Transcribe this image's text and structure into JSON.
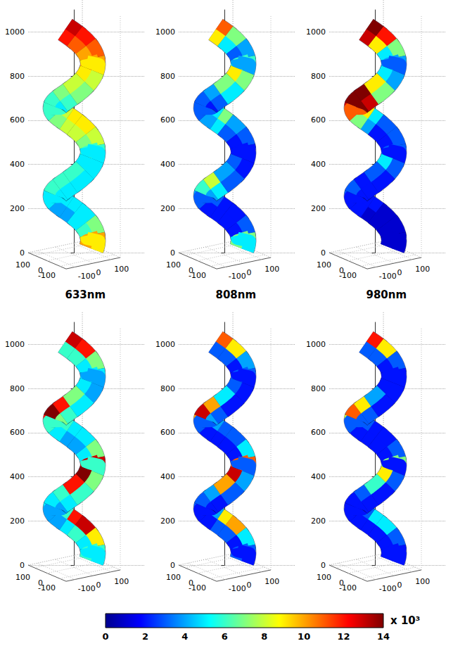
{
  "chart_data": [
    {
      "type": "helix",
      "label": "633nm",
      "grid": true,
      "zlim": [
        0,
        1100
      ],
      "zticks": [
        0,
        200,
        400,
        600,
        800,
        1000
      ],
      "xlim": [
        -150,
        150
      ],
      "xticks": [
        -100,
        0,
        100
      ],
      "ylim": [
        -150,
        150
      ],
      "yticks": [
        -100,
        0,
        100
      ],
      "upper_values": [
        10,
        7,
        5,
        5,
        5,
        5,
        6,
        6,
        6,
        5,
        6,
        8,
        9,
        9,
        8,
        6,
        6,
        7,
        8,
        9,
        10,
        11,
        12,
        13
      ],
      "lower_values": [
        9,
        6,
        5,
        4,
        4,
        5,
        5,
        5,
        5,
        5,
        5,
        7,
        8,
        8,
        7,
        6,
        5,
        6,
        7,
        8,
        9,
        10,
        11,
        12
      ]
    },
    {
      "type": "helix",
      "label": "808nm",
      "grid": true,
      "zlim": [
        0,
        1100
      ],
      "zticks": [
        0,
        200,
        400,
        600,
        800,
        1000
      ],
      "xlim": [
        -150,
        150
      ],
      "xticks": [
        -100,
        0,
        100
      ],
      "ylim": [
        -150,
        150
      ],
      "yticks": [
        -100,
        0,
        100
      ],
      "upper_values": [
        7,
        3,
        2,
        2,
        3,
        4,
        6,
        8,
        4,
        3,
        2,
        3,
        4,
        7,
        5,
        3,
        3,
        4,
        7,
        9,
        6,
        4,
        7,
        11
      ],
      "lower_values": [
        5,
        2,
        2,
        2,
        2,
        3,
        4,
        5,
        3,
        2,
        2,
        2,
        3,
        5,
        4,
        3,
        2,
        3,
        5,
        7,
        4,
        3,
        5,
        9
      ]
    },
    {
      "type": "helix",
      "label": "980nm",
      "grid": true,
      "zlim": [
        0,
        1100
      ],
      "zticks": [
        0,
        200,
        400,
        600,
        800,
        1000
      ],
      "xlim": [
        -150,
        150
      ],
      "xticks": [
        -100,
        0,
        100
      ],
      "ylim": [
        -150,
        150
      ],
      "yticks": [
        -100,
        0,
        100
      ],
      "upper_values": [
        1,
        1,
        1,
        2,
        2,
        3,
        3,
        2,
        3,
        5,
        3,
        3,
        3,
        5,
        9,
        13,
        14,
        14,
        9,
        5,
        4,
        7,
        12,
        14
      ],
      "lower_values": [
        1,
        1,
        1,
        1,
        2,
        2,
        2,
        2,
        2,
        3,
        2,
        2,
        2,
        4,
        7,
        11,
        14,
        13,
        7,
        4,
        3,
        5,
        9,
        13
      ]
    },
    {
      "type": "helix",
      "grid": true,
      "zlim": [
        0,
        1100
      ],
      "zticks": [
        0,
        200,
        400,
        600,
        800,
        1000
      ],
      "xlim": [
        -150,
        150
      ],
      "xticks": [
        -100,
        0,
        100
      ],
      "ylim": [
        -150,
        150
      ],
      "yticks": [
        -100,
        0,
        100
      ],
      "upper_values": [
        6,
        9,
        13,
        12,
        6,
        5,
        5,
        6,
        12,
        14,
        13,
        7,
        5,
        5,
        6,
        12,
        14,
        12,
        7,
        5,
        5,
        7,
        12,
        13
      ],
      "lower_values": [
        5,
        5,
        6,
        5,
        4,
        4,
        4,
        5,
        6,
        7,
        6,
        5,
        4,
        4,
        5,
        6,
        7,
        6,
        5,
        4,
        4,
        5,
        6,
        6
      ]
    },
    {
      "type": "helix",
      "grid": true,
      "zlim": [
        0,
        1100
      ],
      "zticks": [
        0,
        200,
        400,
        600,
        800,
        1000
      ],
      "xlim": [
        -150,
        150
      ],
      "xticks": [
        -100,
        0,
        100
      ],
      "ylim": [
        -150,
        150
      ],
      "yticks": [
        -100,
        0,
        100
      ],
      "upper_values": [
        3,
        5,
        10,
        9,
        4,
        3,
        3,
        4,
        10,
        13,
        11,
        5,
        3,
        3,
        4,
        10,
        13,
        10,
        5,
        3,
        3,
        4,
        9,
        11
      ],
      "lower_values": [
        2,
        2,
        3,
        3,
        2,
        2,
        2,
        2,
        3,
        4,
        3,
        2,
        2,
        2,
        2,
        3,
        4,
        3,
        2,
        2,
        2,
        2,
        3,
        3
      ]
    },
    {
      "type": "helix",
      "grid": true,
      "zlim": [
        0,
        1100
      ],
      "zticks": [
        0,
        200,
        400,
        600,
        800,
        1000
      ],
      "xlim": [
        -150,
        150
      ],
      "xticks": [
        -100,
        0,
        100
      ],
      "ylim": [
        -150,
        150
      ],
      "yticks": [
        -100,
        0,
        100
      ],
      "upper_values": [
        2,
        3,
        5,
        5,
        3,
        2,
        2,
        3,
        6,
        9,
        7,
        3,
        2,
        2,
        3,
        8,
        11,
        9,
        4,
        2,
        2,
        3,
        9,
        12
      ],
      "lower_values": [
        2,
        2,
        2,
        2,
        2,
        2,
        2,
        2,
        2,
        3,
        2,
        2,
        2,
        2,
        2,
        3,
        3,
        3,
        2,
        2,
        2,
        2,
        3,
        3
      ]
    }
  ],
  "color_bar": {
    "range": [
      0,
      14
    ],
    "ticks": [
      0,
      2,
      4,
      6,
      8,
      10,
      12,
      14
    ],
    "label": "x 10³"
  }
}
